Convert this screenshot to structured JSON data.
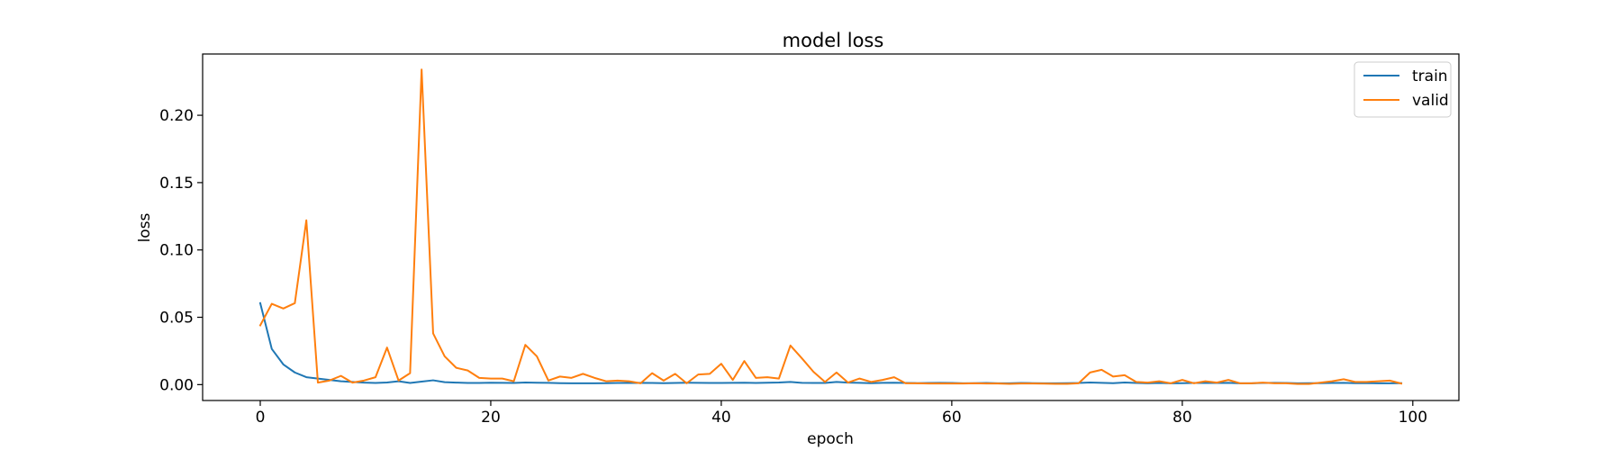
{
  "chart_data": {
    "type": "line",
    "title": "model loss",
    "xlabel": "epoch",
    "ylabel": "loss",
    "xlim": [
      -5,
      104
    ],
    "ylim": [
      -0.0118,
      0.2455
    ],
    "x_ticks": [
      0,
      20,
      40,
      60,
      80,
      100
    ],
    "x_tick_labels": [
      "0",
      "20",
      "40",
      "60",
      "80",
      "100"
    ],
    "y_ticks": [
      0.0,
      0.05,
      0.1,
      0.15,
      0.2
    ],
    "y_tick_labels": [
      "0.00",
      "0.05",
      "0.10",
      "0.15",
      "0.20"
    ],
    "grid": false,
    "legend_position": "top-right",
    "series": [
      {
        "name": "train",
        "color": "#1f77b4",
        "x_start": 0,
        "values": [
          0.0605,
          0.0265,
          0.015,
          0.009,
          0.0055,
          0.0045,
          0.0035,
          0.0025,
          0.002,
          0.0015,
          0.0012,
          0.0016,
          0.0025,
          0.0012,
          0.0022,
          0.0032,
          0.0018,
          0.0015,
          0.0012,
          0.0012,
          0.0014,
          0.0013,
          0.0012,
          0.0016,
          0.0014,
          0.0013,
          0.0011,
          0.001,
          0.001,
          0.001,
          0.0011,
          0.0012,
          0.0012,
          0.0013,
          0.0012,
          0.0011,
          0.0012,
          0.0014,
          0.0013,
          0.0012,
          0.0012,
          0.0013,
          0.0014,
          0.0012,
          0.0014,
          0.0016,
          0.002,
          0.0013,
          0.0012,
          0.0012,
          0.002,
          0.0015,
          0.0013,
          0.0011,
          0.0013,
          0.0014,
          0.0012,
          0.0011,
          0.0012,
          0.0013,
          0.0012,
          0.001,
          0.0011,
          0.0012,
          0.001,
          0.001,
          0.0012,
          0.0011,
          0.001,
          0.001,
          0.0011,
          0.0012,
          0.0016,
          0.0013,
          0.0011,
          0.0016,
          0.0012,
          0.001,
          0.0012,
          0.001,
          0.0011,
          0.0012,
          0.0012,
          0.0012,
          0.0013,
          0.001,
          0.001,
          0.0012,
          0.0013,
          0.0012,
          0.001,
          0.0011,
          0.0011,
          0.0012,
          0.0013,
          0.0011,
          0.0011,
          0.001,
          0.001,
          0.0011
        ]
      },
      {
        "name": "valid",
        "color": "#ff7f0e",
        "x_start": 0,
        "values": [
          0.044,
          0.06,
          0.0565,
          0.0605,
          0.122,
          0.0015,
          0.003,
          0.0065,
          0.0015,
          0.003,
          0.0055,
          0.0275,
          0.003,
          0.0085,
          0.234,
          0.038,
          0.021,
          0.0125,
          0.0105,
          0.005,
          0.0045,
          0.0045,
          0.0025,
          0.0295,
          0.021,
          0.003,
          0.006,
          0.005,
          0.008,
          0.005,
          0.0025,
          0.003,
          0.0025,
          0.001,
          0.0085,
          0.003,
          0.008,
          0.001,
          0.0075,
          0.008,
          0.0155,
          0.0035,
          0.0175,
          0.005,
          0.0055,
          0.0045,
          0.029,
          0.0195,
          0.0095,
          0.002,
          0.009,
          0.0015,
          0.0045,
          0.002,
          0.0035,
          0.0055,
          0.001,
          0.001,
          0.0008,
          0.0008,
          0.0008,
          0.0008,
          0.001,
          0.0008,
          0.0008,
          0.0006,
          0.0008,
          0.0008,
          0.0007,
          0.0006,
          0.0006,
          0.001,
          0.009,
          0.011,
          0.006,
          0.007,
          0.002,
          0.0015,
          0.0025,
          0.001,
          0.0035,
          0.001,
          0.0025,
          0.0015,
          0.0035,
          0.001,
          0.001,
          0.0015,
          0.001,
          0.001,
          0.0005,
          0.0005,
          0.0015,
          0.0025,
          0.004,
          0.002,
          0.002,
          0.0025,
          0.003,
          0.0008
        ]
      }
    ]
  }
}
